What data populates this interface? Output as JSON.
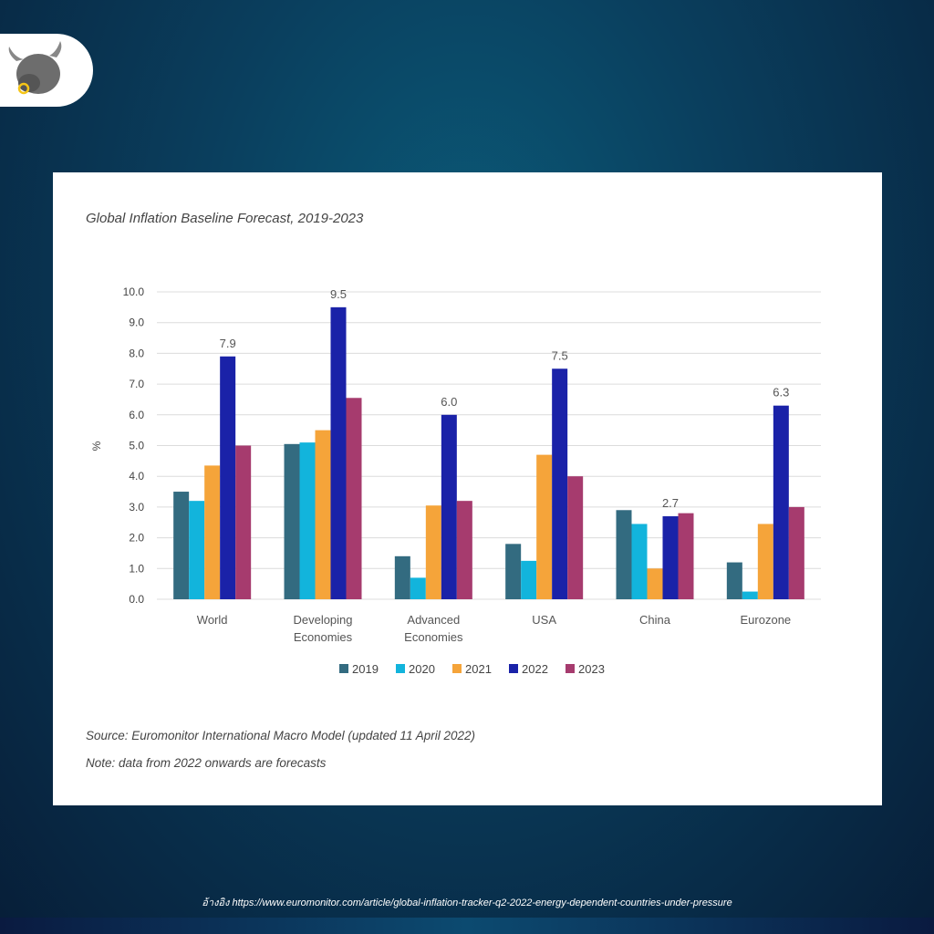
{
  "chart_data": {
    "type": "bar",
    "title": "Global Inflation Baseline Forecast, 2019-2023",
    "ylabel": "%",
    "xlabel": "",
    "ylim": [
      0,
      10
    ],
    "yticks": [
      "0.0",
      "1.0",
      "2.0",
      "3.0",
      "4.0",
      "5.0",
      "6.0",
      "7.0",
      "8.0",
      "9.0",
      "10.0"
    ],
    "grid": true,
    "legend_position": "bottom",
    "categories": [
      [
        "World"
      ],
      [
        "Developing",
        "Economies"
      ],
      [
        "Advanced",
        "Economies"
      ],
      [
        "USA"
      ],
      [
        "China"
      ],
      [
        "Eurozone"
      ]
    ],
    "series": [
      {
        "name": "2019",
        "color": "#336b80",
        "values": [
          3.5,
          5.05,
          1.4,
          1.8,
          2.9,
          1.2
        ]
      },
      {
        "name": "2020",
        "color": "#12b4dc",
        "values": [
          3.2,
          5.1,
          0.7,
          1.25,
          2.45,
          0.25
        ]
      },
      {
        "name": "2021",
        "color": "#f5a43a",
        "values": [
          4.35,
          5.5,
          3.05,
          4.7,
          1.0,
          2.45
        ]
      },
      {
        "name": "2022",
        "color": "#1a22a8",
        "values": [
          7.9,
          9.5,
          6.0,
          7.5,
          2.7,
          6.3
        ]
      },
      {
        "name": "2023",
        "color": "#a63b6e",
        "values": [
          5.0,
          6.55,
          3.2,
          4.0,
          2.8,
          3.0
        ]
      }
    ],
    "data_labels": {
      "series": "2022",
      "labels": [
        "7.9",
        "9.5",
        "6.0",
        "7.5",
        "2.7",
        "6.3"
      ]
    }
  },
  "source": "Source: Euromonitor International Macro Model (updated 11 April 2022)",
  "note": "Note: data from 2022 onwards are forecasts",
  "footer": "อ้างอิง https://www.euromonitor.com/article/global-inflation-tracker-q2-2022-energy-dependent-countries-under-pressure",
  "logo": {
    "icon": "bull-icon"
  }
}
